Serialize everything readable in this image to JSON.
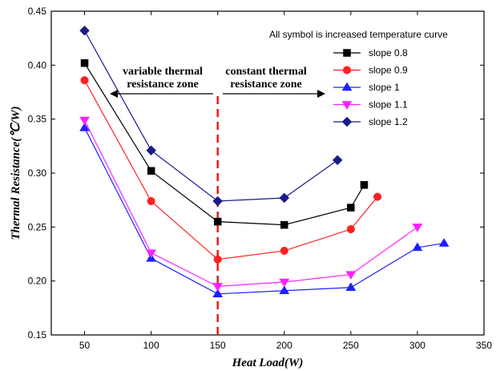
{
  "chart_data": {
    "type": "line",
    "title": "",
    "xlabel": "Heat Load(W)",
    "ylabel": "Thermal Resistance(℃/W)",
    "xlim": [
      25,
      350
    ],
    "ylim": [
      0.15,
      0.45
    ],
    "xticks": [
      50,
      100,
      150,
      200,
      250,
      300,
      350
    ],
    "yticks": [
      0.15,
      0.2,
      0.25,
      0.3,
      0.35,
      0.4,
      0.45
    ],
    "xtick_labels": [
      "50",
      "100",
      "150",
      "200",
      "250",
      "300",
      "350"
    ],
    "ytick_labels": [
      "0.15",
      "0.20",
      "0.25",
      "0.30",
      "0.35",
      "0.40",
      "0.45"
    ],
    "grid": false,
    "legend_title": "All symbol is increased temperature curve",
    "legend_position": "top-right",
    "divider_x": 150,
    "annotations": {
      "left": [
        "variable thermal",
        "resistance zone"
      ],
      "right": [
        "constant thermal",
        "resistance zone"
      ]
    },
    "series": [
      {
        "name": "slope 0.8",
        "color": "#000000",
        "marker": "square",
        "x": [
          50,
          100,
          150,
          200,
          250,
          260
        ],
        "y": [
          0.402,
          0.302,
          0.255,
          0.252,
          0.268,
          0.289
        ]
      },
      {
        "name": "slope 0.9",
        "color": "#ff2020",
        "marker": "circle",
        "x": [
          50,
          100,
          150,
          200,
          250,
          270
        ],
        "y": [
          0.386,
          0.274,
          0.22,
          0.228,
          0.248,
          0.278
        ]
      },
      {
        "name": "slope 1",
        "color": "#2020ff",
        "marker": "triangle-up",
        "x": [
          50,
          100,
          150,
          200,
          250,
          300,
          320
        ],
        "y": [
          0.342,
          0.221,
          0.188,
          0.191,
          0.194,
          0.231,
          0.235
        ]
      },
      {
        "name": "slope 1.1",
        "color": "#ff20ff",
        "marker": "triangle-down",
        "x": [
          50,
          100,
          150,
          200,
          250,
          300
        ],
        "y": [
          0.349,
          0.226,
          0.195,
          0.199,
          0.206,
          0.25
        ]
      },
      {
        "name": "slope 1.2",
        "color": "#1a1a8c",
        "marker": "diamond",
        "x": [
          50,
          100,
          150,
          200,
          240
        ],
        "y": [
          0.432,
          0.321,
          0.274,
          0.277,
          0.312
        ]
      }
    ]
  }
}
